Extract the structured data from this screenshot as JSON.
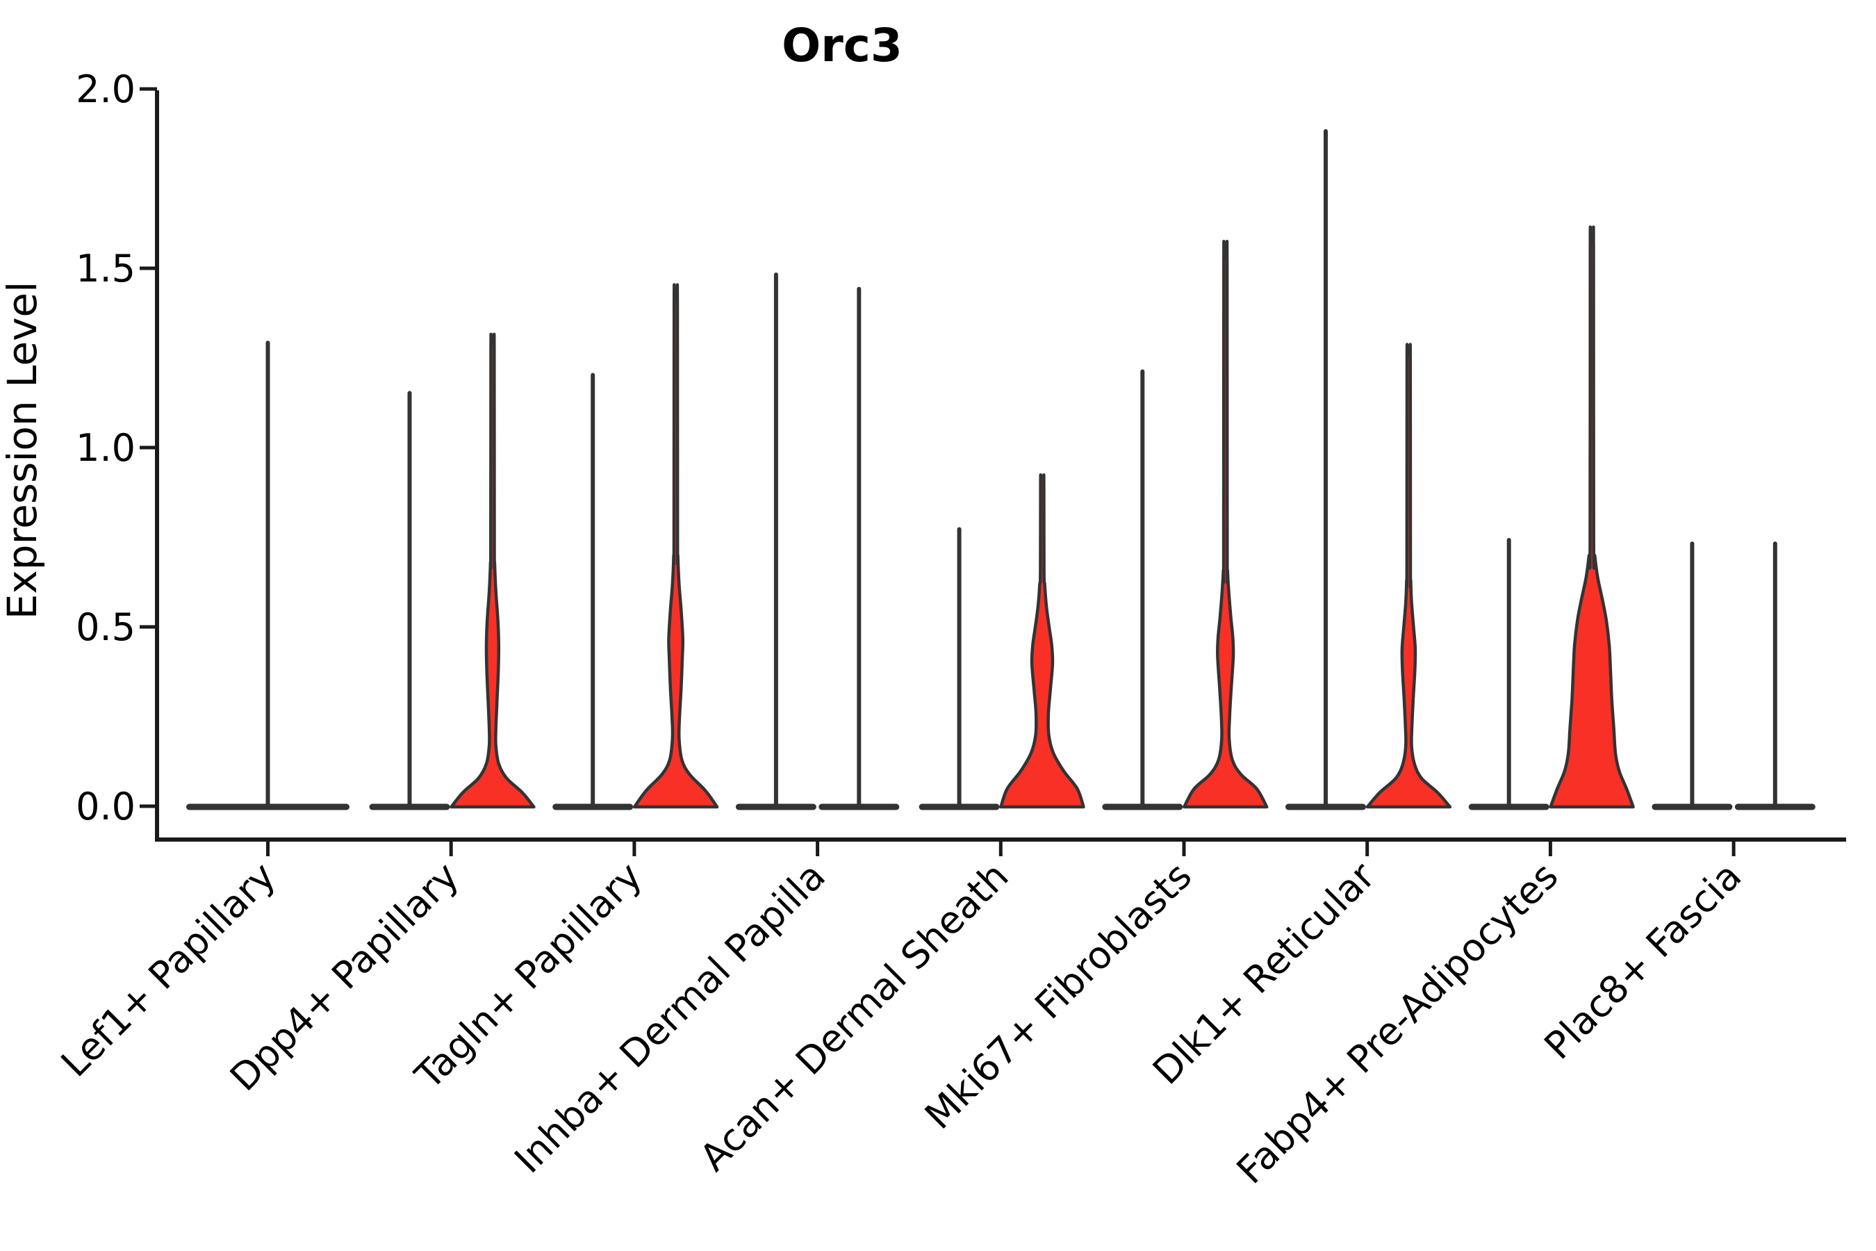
{
  "chart_data": {
    "type": "violin",
    "title": "Orc3",
    "xlabel": "",
    "ylabel": "Expression Level",
    "ylim": [
      0,
      2
    ],
    "grid": false,
    "legend": "none",
    "fill_color": "#F93026",
    "outline_color": "#333333",
    "axis_color": "#1a1a1a",
    "yticks": [
      {
        "value": 0.0,
        "label": "0.0"
      },
      {
        "value": 0.5,
        "label": "0.5"
      },
      {
        "value": 1.0,
        "label": "1.0"
      },
      {
        "value": 1.5,
        "label": "1.5"
      },
      {
        "value": 2.0,
        "label": "2.0"
      }
    ],
    "categories": [
      "Lef1+ Papillary",
      "Dpp4+ Papillary",
      "Tagln+ Papillary",
      "Inhba+ Dermal Papilla",
      "Acan+ Dermal Sheath",
      "Mki67+ Fibroblasts",
      "Dlk1+ Reticular",
      "Fabp4+ Pre-Adipocytes",
      "Plac8+ Fascia"
    ],
    "violins": [
      {
        "category": 0,
        "slot": "center",
        "max_expression": 1.3,
        "shape": "flat"
      },
      {
        "category": 1,
        "slot": "left",
        "max_expression": 1.16,
        "shape": "flat"
      },
      {
        "category": 1,
        "slot": "right",
        "max_expression": 1.29,
        "shape": "body",
        "profile": [
          [
            0,
            1.0
          ],
          [
            0.04,
            0.72
          ],
          [
            0.08,
            0.34
          ],
          [
            0.12,
            0.15
          ],
          [
            0.17,
            0.08
          ],
          [
            0.22,
            0.08
          ],
          [
            0.3,
            0.11
          ],
          [
            0.38,
            0.14
          ],
          [
            0.45,
            0.15
          ],
          [
            0.52,
            0.13
          ],
          [
            0.6,
            0.08
          ],
          [
            0.68,
            0.05
          ]
        ]
      },
      {
        "category": 2,
        "slot": "left",
        "max_expression": 1.21,
        "shape": "flat"
      },
      {
        "category": 2,
        "slot": "right",
        "max_expression": 1.42,
        "shape": "body",
        "profile": [
          [
            0,
            1.0
          ],
          [
            0.045,
            0.72
          ],
          [
            0.09,
            0.34
          ],
          [
            0.13,
            0.15
          ],
          [
            0.19,
            0.08
          ],
          [
            0.25,
            0.09
          ],
          [
            0.33,
            0.13
          ],
          [
            0.42,
            0.16
          ],
          [
            0.47,
            0.17
          ],
          [
            0.55,
            0.13
          ],
          [
            0.62,
            0.08
          ],
          [
            0.7,
            0.05
          ]
        ]
      },
      {
        "category": 3,
        "slot": "left",
        "max_expression": 1.49,
        "shape": "flat"
      },
      {
        "category": 3,
        "slot": "right",
        "max_expression": 1.45,
        "shape": "flat"
      },
      {
        "category": 4,
        "slot": "left",
        "max_expression": 0.78,
        "shape": "flat"
      },
      {
        "category": 4,
        "slot": "right",
        "max_expression": 0.92,
        "shape": "body",
        "profile": [
          [
            0,
            1.0
          ],
          [
            0.05,
            0.85
          ],
          [
            0.1,
            0.52
          ],
          [
            0.15,
            0.27
          ],
          [
            0.2,
            0.16
          ],
          [
            0.26,
            0.15
          ],
          [
            0.33,
            0.2
          ],
          [
            0.4,
            0.25
          ],
          [
            0.45,
            0.23
          ],
          [
            0.5,
            0.17
          ],
          [
            0.56,
            0.1
          ],
          [
            0.62,
            0.06
          ]
        ]
      },
      {
        "category": 5,
        "slot": "left",
        "max_expression": 1.22,
        "shape": "flat"
      },
      {
        "category": 5,
        "slot": "right",
        "max_expression": 1.53,
        "shape": "body",
        "profile": [
          [
            0,
            1.0
          ],
          [
            0.05,
            0.76
          ],
          [
            0.09,
            0.38
          ],
          [
            0.13,
            0.17
          ],
          [
            0.19,
            0.09
          ],
          [
            0.25,
            0.1
          ],
          [
            0.33,
            0.14
          ],
          [
            0.42,
            0.19
          ],
          [
            0.47,
            0.18
          ],
          [
            0.53,
            0.13
          ],
          [
            0.6,
            0.08
          ],
          [
            0.66,
            0.05
          ]
        ]
      },
      {
        "category": 6,
        "slot": "left",
        "max_expression": 1.89,
        "shape": "flat"
      },
      {
        "category": 6,
        "slot": "right",
        "max_expression": 1.26,
        "shape": "body",
        "profile": [
          [
            0,
            1.0
          ],
          [
            0.04,
            0.7
          ],
          [
            0.08,
            0.31
          ],
          [
            0.12,
            0.14
          ],
          [
            0.17,
            0.07
          ],
          [
            0.23,
            0.08
          ],
          [
            0.3,
            0.11
          ],
          [
            0.38,
            0.15
          ],
          [
            0.44,
            0.16
          ],
          [
            0.5,
            0.12
          ],
          [
            0.57,
            0.07
          ],
          [
            0.63,
            0.05
          ]
        ]
      },
      {
        "category": 7,
        "slot": "left",
        "max_expression": 0.75,
        "shape": "flat"
      },
      {
        "category": 7,
        "slot": "right",
        "max_expression": 1.57,
        "shape": "body",
        "profile": [
          [
            0,
            1.0
          ],
          [
            0.05,
            0.84
          ],
          [
            0.1,
            0.66
          ],
          [
            0.15,
            0.57
          ],
          [
            0.22,
            0.53
          ],
          [
            0.3,
            0.48
          ],
          [
            0.38,
            0.45
          ],
          [
            0.45,
            0.42
          ],
          [
            0.52,
            0.35
          ],
          [
            0.58,
            0.25
          ],
          [
            0.64,
            0.14
          ],
          [
            0.7,
            0.07
          ]
        ]
      },
      {
        "category": 8,
        "slot": "left",
        "max_expression": 0.74,
        "shape": "flat"
      },
      {
        "category": 8,
        "slot": "right",
        "max_expression": 0.74,
        "shape": "flat"
      }
    ]
  }
}
